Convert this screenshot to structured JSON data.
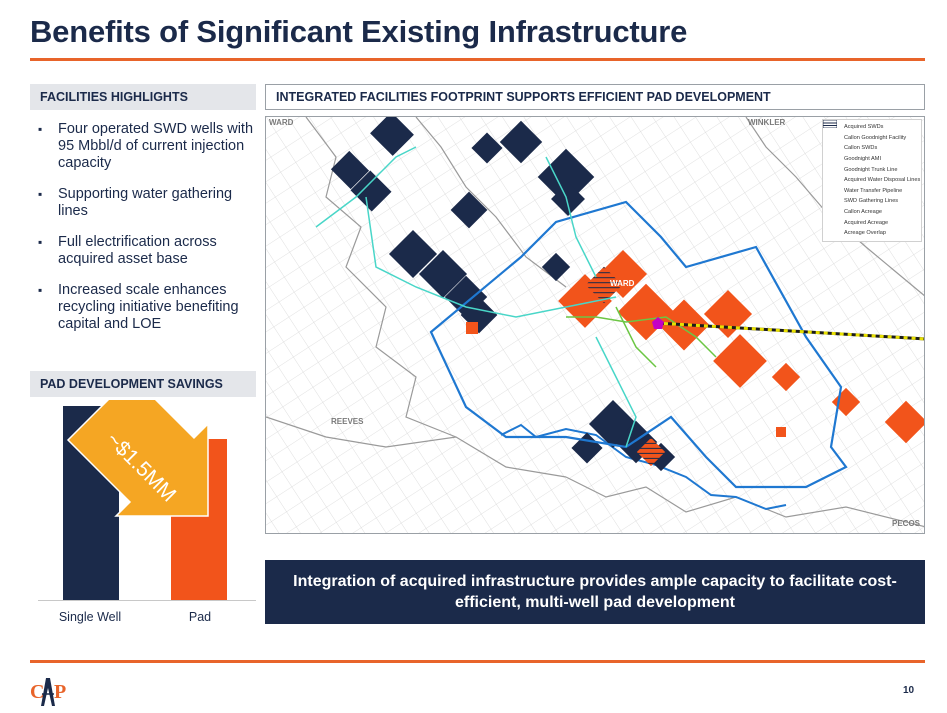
{
  "slide": {
    "title": "Benefits of Significant Existing Infrastructure",
    "page_number": "10"
  },
  "facilities": {
    "header": "FACILITIES HIGHLIGHTS",
    "bullets": [
      "Four operated SWD wells with 95 Mbbl/d of current injection capacity",
      "Supporting water gathering lines",
      "Full electrification across acquired asset base",
      "Increased scale enhances recycling initiative benefiting capital and LOE"
    ]
  },
  "pad_savings": {
    "header": "PAD DEVELOPMENT SAVINGS",
    "arrow_label": "~$1.5MM"
  },
  "chart_data": {
    "type": "bar",
    "categories": [
      "Single Well",
      "Pad"
    ],
    "values": [
      1.0,
      0.83
    ],
    "ylim": [
      0,
      1.0
    ],
    "title": "",
    "xlabel": "",
    "ylabel": "",
    "bar_colors": [
      "#1b2a4a",
      "#f2541b"
    ],
    "annotation": "~$1.5MM",
    "grid": false
  },
  "map": {
    "header": "INTEGRATED FACILITIES FOOTPRINT SUPPORTS EFFICIENT PAD DEVELOPMENT",
    "county_labels": {
      "ward_nw": "WARD",
      "winkler": "WINKLER",
      "ward_center": "WARD",
      "reeves": "REEVES",
      "pecos": "PECOS"
    },
    "legend": [
      {
        "label": "Acquired SWDs",
        "icon": "triangle-pink"
      },
      {
        "label": "Callon Goodnight Facility",
        "icon": "pentagon-magenta"
      },
      {
        "label": "Callon SWDs",
        "icon": "triangle-blue"
      },
      {
        "label": "Goodnight AMI",
        "icon": "outline-blue"
      },
      {
        "label": "Goodnight Trunk Line",
        "icon": "dash-yellow-black"
      },
      {
        "label": "Acquired Water Disposal Lines",
        "icon": "line-cyan"
      },
      {
        "label": "Water Transfer Pipeline",
        "icon": "line-blue"
      },
      {
        "label": "SWD Gathering Lines",
        "icon": "line-green"
      },
      {
        "label": "Callon Acreage",
        "icon": "fill-orange"
      },
      {
        "label": "Acquired Acreage",
        "icon": "fill-navy"
      },
      {
        "label": "Acreage Overlap",
        "icon": "hatch"
      }
    ],
    "colors": {
      "callon": "#f2541b",
      "acquired": "#1b2a4a",
      "ami": "#1f78d1",
      "disposal": "#49d6c8",
      "gathering": "#6cc644",
      "trunk": "#e8e000"
    }
  },
  "callout": {
    "text": "Integration of acquired infrastructure provides ample capacity to facilitate cost-efficient, multi-well pad development"
  },
  "logo": {
    "text": "CAP",
    "color": "#e8642a"
  }
}
